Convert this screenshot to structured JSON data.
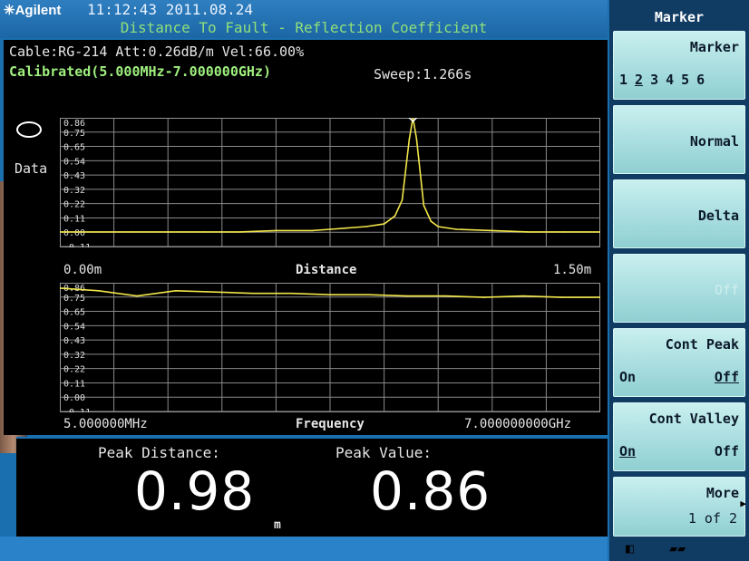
{
  "header": {
    "brand": "Agilent",
    "time": "11:12:43 2011.08.24",
    "title": "Distance To Fault - Reflection Coefficient"
  },
  "info": {
    "cable_line": "Cable:RG-214 Att:0.26dB/m Vel:66.00%",
    "calibrated": "Calibrated(5.000MHz-7.000000GHz)",
    "sweep": "Sweep:1.266s",
    "data_label": "Data"
  },
  "chart_data": [
    {
      "type": "line",
      "xlabel": "Distance",
      "x_start_label": "0.00m",
      "x_end_label": "1.50m",
      "xlim": [
        0.0,
        1.5
      ],
      "ylim": [
        -0.11,
        0.86
      ],
      "ytick_labels": [
        "0.86",
        "0.75",
        "0.65",
        "0.54",
        "0.43",
        "0.32",
        "0.22",
        "0.11",
        "0.00",
        "-0.11"
      ],
      "grid": true,
      "series": [
        {
          "x": [
            0.0,
            0.1,
            0.2,
            0.3,
            0.4,
            0.5,
            0.6,
            0.7,
            0.75,
            0.8,
            0.85,
            0.9,
            0.93,
            0.95,
            0.97,
            0.98,
            0.99,
            1.01,
            1.03,
            1.05,
            1.1,
            1.2,
            1.3,
            1.4,
            1.5
          ],
          "values": [
            0.0,
            0.0,
            0.0,
            0.0,
            0.0,
            0.0,
            0.01,
            0.01,
            0.02,
            0.03,
            0.04,
            0.06,
            0.12,
            0.24,
            0.7,
            0.86,
            0.7,
            0.2,
            0.08,
            0.04,
            0.02,
            0.01,
            0.0,
            0.0,
            0.0
          ]
        }
      ]
    },
    {
      "type": "line",
      "xlabel": "Frequency",
      "x_start_label": "5.000000MHz",
      "x_end_label": "7.000000000GHz",
      "ylim": [
        -0.11,
        0.86
      ],
      "ytick_labels": [
        "0.86",
        "0.75",
        "0.65",
        "0.54",
        "0.43",
        "0.32",
        "0.22",
        "0.11",
        "0.00",
        "-0.11"
      ],
      "grid": true,
      "series": [
        {
          "x": [
            0.0,
            0.5,
            1.0,
            1.5,
            2.0,
            2.5,
            3.0,
            3.5,
            4.0,
            4.5,
            5.0,
            5.5,
            6.0,
            6.5,
            7.0
          ],
          "values": [
            0.82,
            0.8,
            0.76,
            0.8,
            0.79,
            0.78,
            0.78,
            0.77,
            0.77,
            0.76,
            0.76,
            0.75,
            0.76,
            0.75,
            0.75
          ]
        }
      ]
    }
  ],
  "readout": {
    "peak_distance_label": "Peak Distance:",
    "peak_distance_value": "0.98",
    "unit": "m",
    "peak_value_label": "Peak Value:",
    "peak_value_value": "0.86"
  },
  "menu": {
    "title": "Marker",
    "marker_key": {
      "label": "Marker",
      "numbers": [
        "1",
        "2",
        "3",
        "4",
        "5",
        "6"
      ],
      "selected": "2"
    },
    "normal": "Normal",
    "delta": "Delta",
    "off": "Off",
    "cont_peak": {
      "label": "Cont Peak",
      "on": "On",
      "off": "Off"
    },
    "cont_valley": {
      "label": "Cont Valley",
      "on": "On",
      "off": "Off"
    },
    "more": {
      "label": "More",
      "page": "1 of 2"
    }
  }
}
